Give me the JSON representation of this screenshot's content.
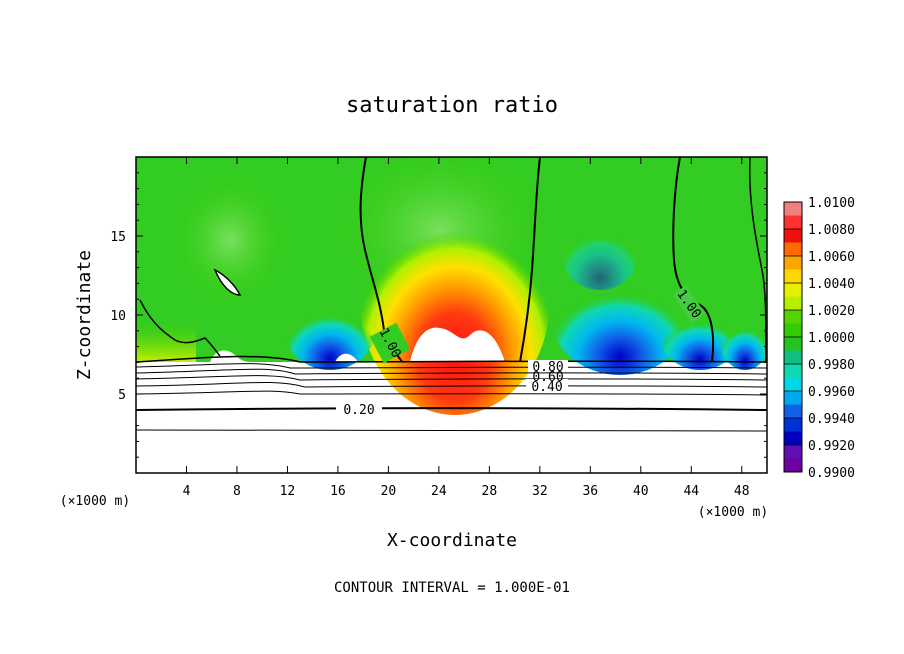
{
  "chart_data": {
    "type": "heatmap",
    "title": "saturation ratio",
    "xlabel": "X-coordinate",
    "ylabel": "Z-coordinate",
    "x_unit": "(×1000 m)",
    "y_unit": "(×1000 m)",
    "footer": "CONTOUR INTERVAL = 1.000E-01",
    "xlim": [
      0,
      50
    ],
    "ylim": [
      0,
      20
    ],
    "x_ticks": [
      "4",
      "8",
      "12",
      "16",
      "20",
      "24",
      "28",
      "32",
      "36",
      "40",
      "44",
      "48"
    ],
    "x_tick_values": [
      4,
      8,
      12,
      16,
      20,
      24,
      28,
      32,
      36,
      40,
      44,
      48
    ],
    "y_ticks": [
      "5",
      "10",
      "15"
    ],
    "y_tick_values": [
      5,
      10,
      15
    ],
    "colorbar": {
      "min": 0.99,
      "max": 1.01,
      "labels": [
        "1.0100",
        "1.0080",
        "1.0060",
        "1.0040",
        "1.0020",
        "1.0000",
        "0.9980",
        "0.9960",
        "0.9940",
        "0.9920",
        "0.9900"
      ],
      "colors": [
        "#f08080",
        "#ff3030",
        "#f01010",
        "#ff6a00",
        "#ffa500",
        "#ffd700",
        "#e6f000",
        "#b6f000",
        "#55d200",
        "#33cc00",
        "#22c322",
        "#11c080",
        "#10d8b0",
        "#00d8e8",
        "#00a8f0",
        "#1060e8",
        "#0030d8",
        "#0000c0",
        "#6010b0",
        "#7000a0"
      ]
    },
    "contour_labels": [
      "1.00",
      "1.00",
      "0.80",
      "0.60",
      "0.40",
      "0.20"
    ]
  }
}
